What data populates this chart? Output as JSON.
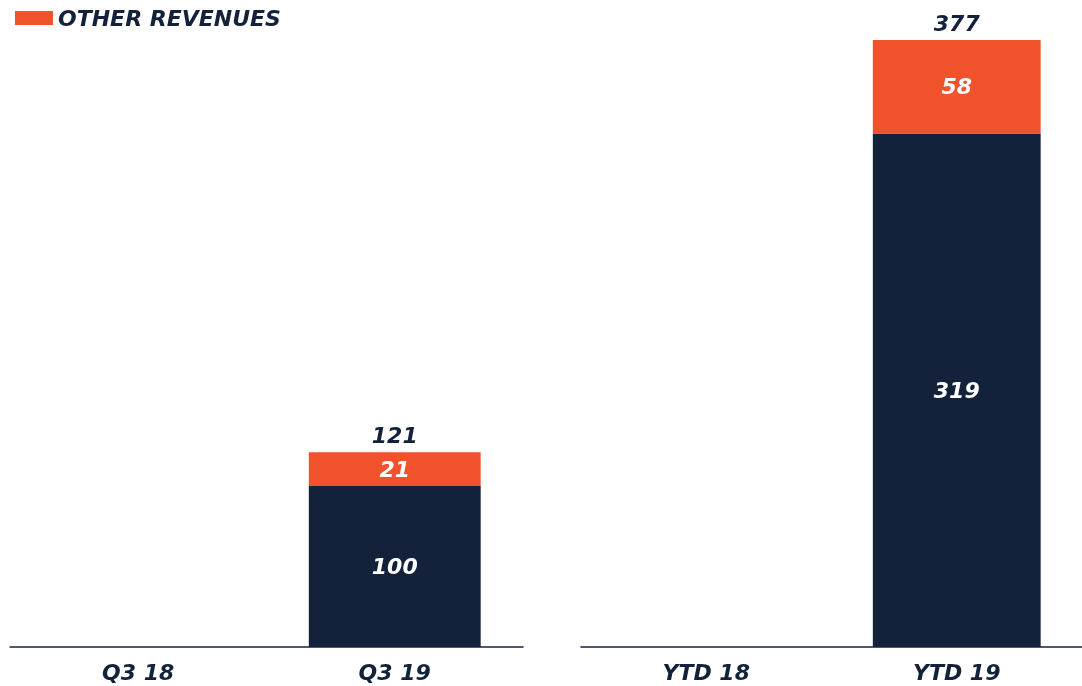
{
  "chart_data": [
    {
      "type": "bar",
      "stacked": true,
      "categories": [
        "Q3 18",
        "Q3 19"
      ],
      "legend": "top left",
      "data_labels": true,
      "totals": [
        null,
        "121"
      ],
      "series": [
        {
          "color": "#13223a",
          "values": [
            null,
            100
          ]
        },
        {
          "name": "OTHER REVENUES",
          "color": "#f0532b",
          "values": [
            null,
            21
          ]
        }
      ]
    },
    {
      "type": "bar",
      "stacked": true,
      "categories": [
        "YTD 18",
        "YTD 19"
      ],
      "data_labels": true,
      "totals": [
        null,
        "377"
      ],
      "series": [
        {
          "color": "#13223a",
          "values": [
            null,
            319
          ]
        },
        {
          "color": "#f0532b",
          "values": [
            null,
            58
          ]
        }
      ]
    }
  ]
}
